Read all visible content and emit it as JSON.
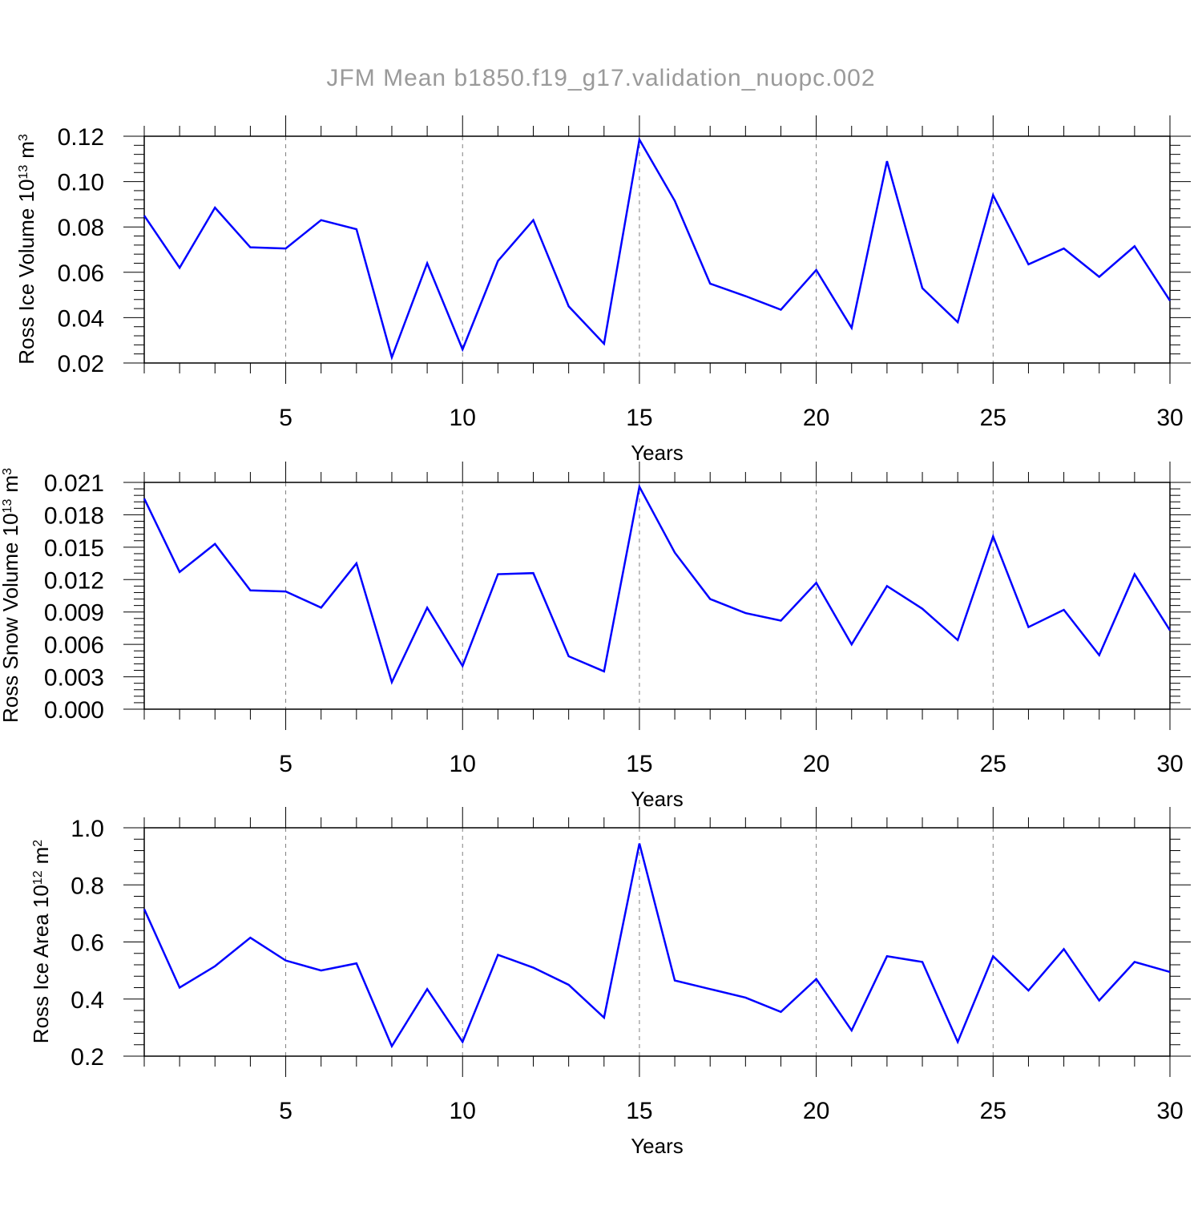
{
  "title": "JFM Mean b1850.f19_g17.validation_nuopc.002",
  "colors": {
    "series": "#0000ff",
    "grid": "#808080",
    "frame": "#000000",
    "title": "#9a9a9a"
  },
  "chart_data": [
    {
      "type": "line",
      "xlabel": "Years",
      "ylabel_prefix": "Ross Ice Volume 10",
      "ylabel_exp": "13",
      "ylabel_unit": "m",
      "ylabel_unit_exp": "3",
      "xlim": [
        1,
        30
      ],
      "ylim": [
        0.02,
        0.12
      ],
      "xticks": [
        5,
        10,
        15,
        20,
        25,
        30
      ],
      "xtick_labels": [
        "5",
        "10",
        "15",
        "20",
        "25",
        "30"
      ],
      "yticks": [
        0.02,
        0.04,
        0.06,
        0.08,
        0.1,
        0.12
      ],
      "ytick_labels": [
        "0.02",
        "0.04",
        "0.06",
        "0.08",
        "0.10",
        "0.12"
      ],
      "grid": "vertical dashed at major x ticks",
      "x": [
        1,
        2,
        3,
        4,
        5,
        6,
        7,
        8,
        9,
        10,
        11,
        12,
        13,
        14,
        15,
        16,
        17,
        18,
        19,
        20,
        21,
        22,
        23,
        24,
        25,
        26,
        27,
        28,
        29,
        30
      ],
      "series": [
        {
          "values": [
            0.085,
            0.062,
            0.0885,
            0.071,
            0.0705,
            0.083,
            0.079,
            0.0225,
            0.064,
            0.026,
            0.065,
            0.083,
            0.045,
            0.0285,
            0.1185,
            0.0915,
            0.055,
            0.0495,
            0.0435,
            0.061,
            0.0355,
            0.109,
            0.053,
            0.038,
            0.094,
            0.0635,
            0.0705,
            0.058,
            0.0715,
            0.0475
          ]
        }
      ]
    },
    {
      "type": "line",
      "xlabel": "Years",
      "ylabel_prefix": "Ross Snow Volume 10",
      "ylabel_exp": "13",
      "ylabel_unit": "m",
      "ylabel_unit_exp": "3",
      "xlim": [
        1,
        30
      ],
      "ylim": [
        0.0,
        0.021
      ],
      "xticks": [
        5,
        10,
        15,
        20,
        25,
        30
      ],
      "xtick_labels": [
        "5",
        "10",
        "15",
        "20",
        "25",
        "30"
      ],
      "yticks": [
        0.0,
        0.003,
        0.006,
        0.009,
        0.012,
        0.015,
        0.018,
        0.021
      ],
      "ytick_labels": [
        "0.000",
        "0.003",
        "0.006",
        "0.009",
        "0.012",
        "0.015",
        "0.018",
        "0.021"
      ],
      "grid": "vertical dashed at major x ticks",
      "x": [
        1,
        2,
        3,
        4,
        5,
        6,
        7,
        8,
        9,
        10,
        11,
        12,
        13,
        14,
        15,
        16,
        17,
        18,
        19,
        20,
        21,
        22,
        23,
        24,
        25,
        26,
        27,
        28,
        29,
        30
      ],
      "series": [
        {
          "values": [
            0.0195,
            0.0127,
            0.0153,
            0.011,
            0.0109,
            0.0094,
            0.0135,
            0.0025,
            0.0094,
            0.004,
            0.0125,
            0.0126,
            0.0049,
            0.0035,
            0.0206,
            0.0145,
            0.0102,
            0.0089,
            0.0082,
            0.0117,
            0.006,
            0.0114,
            0.0093,
            0.0064,
            0.016,
            0.0076,
            0.0092,
            0.005,
            0.0125,
            0.0073
          ]
        }
      ]
    },
    {
      "type": "line",
      "xlabel": "Years",
      "ylabel_prefix": "Ross Ice Area 10",
      "ylabel_exp": "12",
      "ylabel_unit": "m",
      "ylabel_unit_exp": "2",
      "xlim": [
        1,
        30
      ],
      "ylim": [
        0.2,
        1.0
      ],
      "xticks": [
        5,
        10,
        15,
        20,
        25,
        30
      ],
      "xtick_labels": [
        "5",
        "10",
        "15",
        "20",
        "25",
        "30"
      ],
      "yticks": [
        0.2,
        0.4,
        0.6,
        0.8,
        1.0
      ],
      "ytick_labels": [
        "0.2",
        "0.4",
        "0.6",
        "0.8",
        "1.0"
      ],
      "grid": "vertical dashed at major x ticks",
      "x": [
        1,
        2,
        3,
        4,
        5,
        6,
        7,
        8,
        9,
        10,
        11,
        12,
        13,
        14,
        15,
        16,
        17,
        18,
        19,
        20,
        21,
        22,
        23,
        24,
        25,
        26,
        27,
        28,
        29,
        30
      ],
      "series": [
        {
          "values": [
            0.715,
            0.44,
            0.515,
            0.615,
            0.535,
            0.5,
            0.525,
            0.235,
            0.435,
            0.25,
            0.555,
            0.51,
            0.45,
            0.335,
            0.945,
            0.465,
            0.435,
            0.405,
            0.355,
            0.47,
            0.29,
            0.55,
            0.53,
            0.25,
            0.55,
            0.43,
            0.575,
            0.395,
            0.53,
            0.495
          ]
        }
      ]
    }
  ]
}
